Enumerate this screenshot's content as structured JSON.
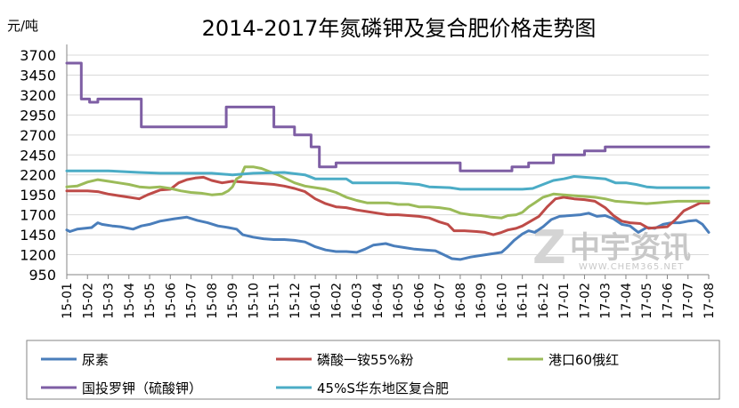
{
  "chart_data": {
    "type": "line",
    "title": "2014-2017年氮磷钾及复合肥价格走势图",
    "y_unit_label": "元/吨",
    "ylim": [
      950,
      3700
    ],
    "y_ticks": [
      "950",
      "1200",
      "1450",
      "1700",
      "1950",
      "2200",
      "2450",
      "2700",
      "2950",
      "3200",
      "3450",
      "3700"
    ],
    "x_ticks": [
      "15-01",
      "15-02",
      "15-03",
      "15-04",
      "15-05",
      "15-06",
      "15-07",
      "15-08",
      "15-09",
      "15-10",
      "15-11",
      "15-12",
      "16-01",
      "16-02",
      "16-03",
      "16-04",
      "16-05",
      "16-06",
      "16-07",
      "16-08",
      "16-09",
      "16-10",
      "16-11",
      "16-12",
      "17-01",
      "17-02",
      "17-03",
      "17-04",
      "17-05",
      "17-06",
      "17-07",
      "17-08"
    ],
    "grid": "horizontal",
    "legend_position": "bottom",
    "watermark": {
      "text": "中宇资讯",
      "url_text": "WWW.CHEM365.NET"
    },
    "series": [
      {
        "name": "尿素",
        "color": "#4a7ebb",
        "points": [
          [
            0,
            1510
          ],
          [
            0.15,
            1490
          ],
          [
            0.5,
            1520
          ],
          [
            1.2,
            1540
          ],
          [
            1.5,
            1600
          ],
          [
            1.7,
            1580
          ],
          [
            2.2,
            1560
          ],
          [
            2.6,
            1550
          ],
          [
            3.2,
            1520
          ],
          [
            3.6,
            1560
          ],
          [
            4.0,
            1580
          ],
          [
            4.5,
            1620
          ],
          [
            5.2,
            1650
          ],
          [
            5.8,
            1670
          ],
          [
            6.3,
            1630
          ],
          [
            6.8,
            1600
          ],
          [
            7.3,
            1560
          ],
          [
            7.8,
            1540
          ],
          [
            8.2,
            1520
          ],
          [
            8.5,
            1450
          ],
          [
            9.0,
            1420
          ],
          [
            9.5,
            1400
          ],
          [
            10.0,
            1390
          ],
          [
            10.5,
            1390
          ],
          [
            11.0,
            1380
          ],
          [
            11.5,
            1360
          ],
          [
            12.0,
            1300
          ],
          [
            12.5,
            1260
          ],
          [
            13.0,
            1240
          ],
          [
            13.5,
            1240
          ],
          [
            14.0,
            1230
          ],
          [
            14.4,
            1270
          ],
          [
            14.8,
            1320
          ],
          [
            15.4,
            1340
          ],
          [
            15.8,
            1310
          ],
          [
            16.3,
            1290
          ],
          [
            16.8,
            1270
          ],
          [
            17.3,
            1260
          ],
          [
            17.8,
            1250
          ],
          [
            18.2,
            1200
          ],
          [
            18.6,
            1150
          ],
          [
            19.0,
            1140
          ],
          [
            19.5,
            1170
          ],
          [
            20.0,
            1190
          ],
          [
            20.5,
            1210
          ],
          [
            21.0,
            1230
          ],
          [
            21.3,
            1300
          ],
          [
            21.6,
            1380
          ],
          [
            22.0,
            1460
          ],
          [
            22.3,
            1500
          ],
          [
            22.6,
            1480
          ],
          [
            23.0,
            1550
          ],
          [
            23.4,
            1640
          ],
          [
            23.8,
            1680
          ],
          [
            24.3,
            1690
          ],
          [
            24.8,
            1700
          ],
          [
            25.2,
            1720
          ],
          [
            25.6,
            1680
          ],
          [
            26.0,
            1690
          ],
          [
            26.4,
            1650
          ],
          [
            26.8,
            1580
          ],
          [
            27.2,
            1560
          ],
          [
            27.6,
            1480
          ],
          [
            28.0,
            1540
          ],
          [
            28.4,
            1530
          ],
          [
            28.8,
            1580
          ],
          [
            29.2,
            1600
          ],
          [
            29.6,
            1600
          ],
          [
            30.0,
            1620
          ],
          [
            30.4,
            1630
          ],
          [
            30.7,
            1580
          ],
          [
            31.0,
            1480
          ]
        ]
      },
      {
        "name": "磷酸一铵55%粉",
        "color": "#be4b48",
        "points": [
          [
            0,
            2000
          ],
          [
            0.5,
            2000
          ],
          [
            1.0,
            2000
          ],
          [
            1.5,
            1990
          ],
          [
            2.0,
            1960
          ],
          [
            2.5,
            1940
          ],
          [
            3.0,
            1920
          ],
          [
            3.5,
            1900
          ],
          [
            3.9,
            1950
          ],
          [
            4.5,
            2010
          ],
          [
            5.0,
            2020
          ],
          [
            5.4,
            2100
          ],
          [
            5.8,
            2140
          ],
          [
            6.2,
            2160
          ],
          [
            6.6,
            2170
          ],
          [
            7.0,
            2130
          ],
          [
            7.5,
            2100
          ],
          [
            8.0,
            2120
          ],
          [
            8.5,
            2110
          ],
          [
            9.0,
            2100
          ],
          [
            9.5,
            2090
          ],
          [
            10.0,
            2080
          ],
          [
            10.5,
            2060
          ],
          [
            11.0,
            2030
          ],
          [
            11.5,
            1990
          ],
          [
            12.0,
            1900
          ],
          [
            12.5,
            1840
          ],
          [
            13.0,
            1800
          ],
          [
            13.5,
            1790
          ],
          [
            14.0,
            1760
          ],
          [
            14.5,
            1740
          ],
          [
            15.0,
            1720
          ],
          [
            15.5,
            1700
          ],
          [
            16.0,
            1700
          ],
          [
            16.5,
            1690
          ],
          [
            17.0,
            1680
          ],
          [
            17.5,
            1660
          ],
          [
            18.0,
            1610
          ],
          [
            18.4,
            1580
          ],
          [
            18.7,
            1500
          ],
          [
            19.2,
            1500
          ],
          [
            19.8,
            1490
          ],
          [
            20.2,
            1480
          ],
          [
            20.6,
            1450
          ],
          [
            21.0,
            1480
          ],
          [
            21.3,
            1510
          ],
          [
            21.7,
            1530
          ],
          [
            22.0,
            1560
          ],
          [
            22.4,
            1620
          ],
          [
            22.8,
            1680
          ],
          [
            23.2,
            1800
          ],
          [
            23.6,
            1900
          ],
          [
            24.0,
            1920
          ],
          [
            24.5,
            1900
          ],
          [
            25.0,
            1890
          ],
          [
            25.5,
            1870
          ],
          [
            26.0,
            1790
          ],
          [
            26.4,
            1690
          ],
          [
            26.8,
            1620
          ],
          [
            27.2,
            1600
          ],
          [
            27.7,
            1590
          ],
          [
            28.1,
            1530
          ],
          [
            28.5,
            1540
          ],
          [
            29.0,
            1550
          ],
          [
            29.4,
            1640
          ],
          [
            29.8,
            1750
          ],
          [
            30.2,
            1800
          ],
          [
            30.6,
            1850
          ],
          [
            31.0,
            1850
          ]
        ]
      },
      {
        "name": "港口60俄红",
        "color": "#9bbb59",
        "points": [
          [
            0,
            2050
          ],
          [
            0.5,
            2060
          ],
          [
            1.0,
            2110
          ],
          [
            1.5,
            2140
          ],
          [
            2.0,
            2120
          ],
          [
            2.5,
            2100
          ],
          [
            3.0,
            2080
          ],
          [
            3.5,
            2050
          ],
          [
            4.0,
            2040
          ],
          [
            4.5,
            2050
          ],
          [
            5.0,
            2030
          ],
          [
            5.5,
            2000
          ],
          [
            6.0,
            1980
          ],
          [
            6.5,
            1970
          ],
          [
            7.0,
            1950
          ],
          [
            7.5,
            1960
          ],
          [
            7.8,
            2000
          ],
          [
            8.0,
            2050
          ],
          [
            8.2,
            2150
          ],
          [
            8.4,
            2180
          ],
          [
            8.6,
            2300
          ],
          [
            9.0,
            2300
          ],
          [
            9.4,
            2280
          ],
          [
            9.8,
            2240
          ],
          [
            10.2,
            2200
          ],
          [
            10.6,
            2150
          ],
          [
            11.0,
            2100
          ],
          [
            11.5,
            2060
          ],
          [
            12.0,
            2040
          ],
          [
            12.5,
            2020
          ],
          [
            13.0,
            1980
          ],
          [
            13.5,
            1920
          ],
          [
            14.0,
            1880
          ],
          [
            14.5,
            1850
          ],
          [
            15.0,
            1850
          ],
          [
            15.5,
            1850
          ],
          [
            16.0,
            1830
          ],
          [
            16.5,
            1830
          ],
          [
            17.0,
            1800
          ],
          [
            17.5,
            1800
          ],
          [
            18.0,
            1790
          ],
          [
            18.5,
            1770
          ],
          [
            19.0,
            1720
          ],
          [
            19.5,
            1700
          ],
          [
            20.0,
            1690
          ],
          [
            20.5,
            1670
          ],
          [
            21.0,
            1660
          ],
          [
            21.3,
            1690
          ],
          [
            21.7,
            1700
          ],
          [
            22.0,
            1730
          ],
          [
            22.3,
            1800
          ],
          [
            22.6,
            1850
          ],
          [
            23.0,
            1920
          ],
          [
            23.5,
            1960
          ],
          [
            24.0,
            1950
          ],
          [
            24.5,
            1940
          ],
          [
            25.0,
            1930
          ],
          [
            25.5,
            1920
          ],
          [
            26.0,
            1900
          ],
          [
            26.5,
            1870
          ],
          [
            27.0,
            1860
          ],
          [
            27.5,
            1850
          ],
          [
            28.0,
            1840
          ],
          [
            28.5,
            1850
          ],
          [
            29.0,
            1860
          ],
          [
            29.5,
            1870
          ],
          [
            30.0,
            1870
          ],
          [
            30.5,
            1870
          ],
          [
            31.0,
            1870
          ]
        ]
      },
      {
        "name": "国投罗钾（硫酸钾）",
        "color": "#7e5ea4",
        "points": [
          [
            0,
            3600
          ],
          [
            0.7,
            3600
          ],
          [
            0.7,
            3150
          ],
          [
            1.1,
            3150
          ],
          [
            1.1,
            3110
          ],
          [
            1.5,
            3110
          ],
          [
            1.5,
            3150
          ],
          [
            3.6,
            3150
          ],
          [
            3.6,
            2800
          ],
          [
            7.7,
            2800
          ],
          [
            7.7,
            3050
          ],
          [
            10.0,
            3050
          ],
          [
            10.0,
            2800
          ],
          [
            11.0,
            2800
          ],
          [
            11.0,
            2700
          ],
          [
            11.8,
            2700
          ],
          [
            11.8,
            2550
          ],
          [
            12.2,
            2550
          ],
          [
            12.2,
            2300
          ],
          [
            13.0,
            2300
          ],
          [
            13.0,
            2350
          ],
          [
            19.0,
            2350
          ],
          [
            19.0,
            2250
          ],
          [
            21.5,
            2250
          ],
          [
            21.5,
            2300
          ],
          [
            22.3,
            2300
          ],
          [
            22.3,
            2350
          ],
          [
            23.5,
            2350
          ],
          [
            23.5,
            2450
          ],
          [
            25.0,
            2450
          ],
          [
            25.0,
            2500
          ],
          [
            26.0,
            2500
          ],
          [
            26.0,
            2550
          ],
          [
            31.0,
            2550
          ]
        ]
      },
      {
        "name": "45%S华东地区复合肥",
        "color": "#4bacc6",
        "points": [
          [
            0,
            2250
          ],
          [
            2.0,
            2250
          ],
          [
            3.5,
            2230
          ],
          [
            4.5,
            2220
          ],
          [
            7.0,
            2220
          ],
          [
            8.0,
            2200
          ],
          [
            9.0,
            2220
          ],
          [
            10.5,
            2230
          ],
          [
            11.5,
            2200
          ],
          [
            12.0,
            2150
          ],
          [
            13.5,
            2150
          ],
          [
            13.8,
            2100
          ],
          [
            16.0,
            2100
          ],
          [
            17.0,
            2080
          ],
          [
            17.5,
            2050
          ],
          [
            18.5,
            2040
          ],
          [
            19.0,
            2020
          ],
          [
            22.0,
            2020
          ],
          [
            22.5,
            2030
          ],
          [
            23.0,
            2080
          ],
          [
            23.5,
            2130
          ],
          [
            24.0,
            2150
          ],
          [
            24.5,
            2180
          ],
          [
            25.5,
            2160
          ],
          [
            26.0,
            2150
          ],
          [
            26.5,
            2100
          ],
          [
            27.0,
            2100
          ],
          [
            27.5,
            2080
          ],
          [
            28.0,
            2050
          ],
          [
            28.5,
            2040
          ],
          [
            31.0,
            2040
          ]
        ]
      }
    ]
  }
}
